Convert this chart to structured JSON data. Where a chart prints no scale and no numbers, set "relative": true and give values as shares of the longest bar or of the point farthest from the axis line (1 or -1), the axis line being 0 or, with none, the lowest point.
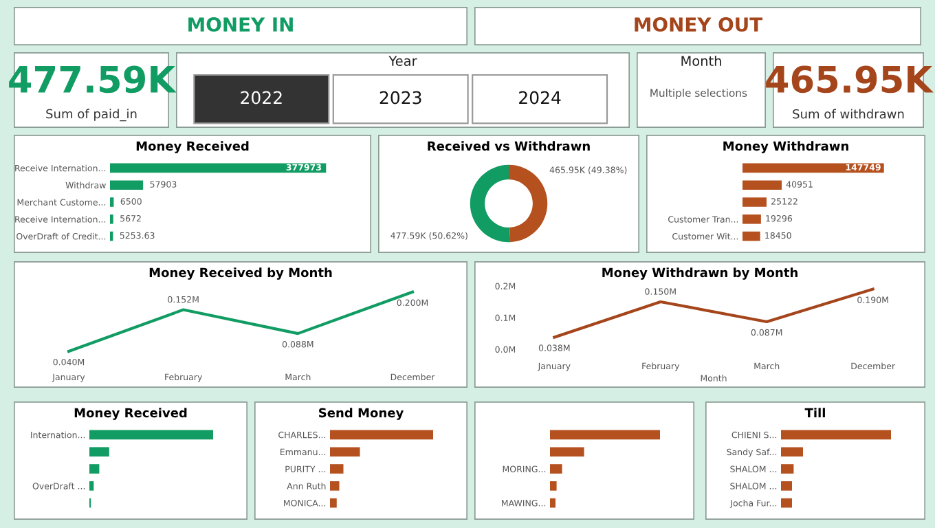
{
  "chart_data": [
    {
      "type": "other",
      "title": "MONEY IN",
      "color": "#119c63"
    },
    {
      "type": "other",
      "title": "MONEY OUT",
      "color": "#a5451b"
    },
    {
      "type": "other",
      "title": "477.59K",
      "subtitle": "Sum of paid_in",
      "color": "#119c63"
    },
    {
      "type": "other",
      "title": "Year",
      "annotations": [
        "2022",
        "2023",
        "2024"
      ]
    },
    {
      "type": "other",
      "title": "Month",
      "annotations": [
        "Multiple selections"
      ]
    },
    {
      "type": "other",
      "title": "465.95K",
      "subtitle": "Sum of withdrawn",
      "color": "#a5451b"
    },
    {
      "type": "bar",
      "orientation": "horizontal",
      "title": "Money Received",
      "categories": [
        "Receive Internation...",
        "Withdraw",
        "Merchant Custome...",
        "Receive Internation...",
        "OverDraft of Credit..."
      ],
      "values": [
        377973,
        57903,
        6500,
        5672,
        5253.63
      ],
      "color": "#119c63",
      "data_labels": true
    },
    {
      "type": "donut",
      "title": "Received vs Withdrawn",
      "categories": [
        null,
        null
      ],
      "values": [
        49.38,
        50.62
      ],
      "colors": [
        "#b5501f",
        "#119c63"
      ],
      "value_labels": [
        "465.95K (49.38%)",
        "477.59K (50.62%)"
      ]
    },
    {
      "type": "bar",
      "orientation": "horizontal",
      "title": "Money Withdrawn",
      "categories": [
        null,
        null,
        null,
        "Customer Tran...",
        "Customer Wit..."
      ],
      "values": [
        147749,
        40951,
        25122,
        19296,
        18450
      ],
      "color": "#b5501f",
      "data_labels": true
    },
    {
      "type": "line",
      "title": "Money Received by Month",
      "categories": [
        "January",
        "February",
        "March",
        "December"
      ],
      "values": [
        0.04,
        0.152,
        0.088,
        0.2
      ],
      "value_labels": [
        "0.040M",
        "0.152M",
        "0.088M",
        "0.200M"
      ],
      "color": "#119c63"
    },
    {
      "type": "line",
      "title": "Money Withdrawn by Month",
      "categories": [
        "January",
        "February",
        "March",
        "December"
      ],
      "values": [
        0.038,
        0.15,
        0.087,
        0.19
      ],
      "value_labels": [
        "0.038M",
        "0.150M",
        "0.087M",
        "0.190M"
      ],
      "color": "#a5451b",
      "xlabel": "Month",
      "ylim": [
        0,
        0.2
      ],
      "yticks": [
        {
          "value": 0,
          "label": "0.0M"
        },
        {
          "value": 0.1,
          "label": "0.1M"
        },
        {
          "value": 0.2,
          "label": "0.2M"
        }
      ]
    },
    {
      "type": "bar",
      "orientation": "horizontal",
      "relative": true,
      "title": "Money Received",
      "categories": [
        "Internation...",
        null,
        null,
        "OverDraft ...",
        null
      ],
      "values": [
        1,
        0.16,
        0.08,
        0.035,
        0.012
      ],
      "color": "#119c63"
    },
    {
      "type": "bar",
      "orientation": "horizontal",
      "relative": true,
      "title": "Send Money",
      "categories": [
        "CHARLES...",
        "Emmanu...",
        "PURITY ...",
        "Ann Ruth",
        "MONICA..."
      ],
      "values": [
        1,
        0.29,
        0.13,
        0.09,
        0.065
      ],
      "color": "#b5501f"
    },
    {
      "type": "bar",
      "orientation": "horizontal",
      "relative": true,
      "categories": [
        null,
        null,
        "MORING...",
        null,
        "MAWING..."
      ],
      "values": [
        1,
        0.31,
        0.11,
        0.06,
        0.05
      ],
      "color": "#b5501f"
    },
    {
      "type": "bar",
      "orientation": "horizontal",
      "relative": true,
      "title": "Till",
      "categories": [
        "CHIENI S...",
        "Sandy Saf...",
        "SHALOM ...",
        "SHALOM ...",
        "Jocha Fur..."
      ],
      "values": [
        1,
        0.2,
        0.115,
        0.1,
        0.1
      ],
      "color": "#b5501f"
    }
  ]
}
